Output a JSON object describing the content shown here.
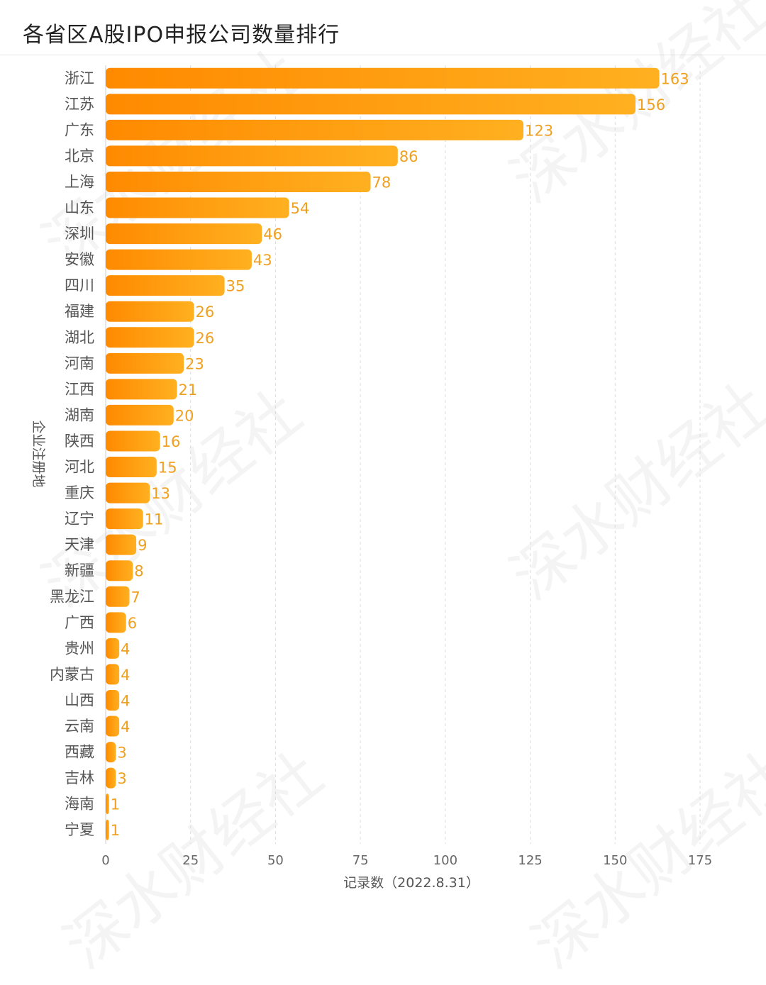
{
  "title": "各省区A股IPO申报公司数量排行",
  "watermark": "深水财经社",
  "colors": {
    "bar_start": "#ff8a00",
    "bar_end": "#ffb020",
    "value_label": "#f0a020",
    "grid": "#dddddd"
  },
  "chart_data": {
    "type": "bar",
    "orientation": "horizontal",
    "title": "各省区A股IPO申报公司数量排行",
    "xlabel": "记录数（2022.8.31）",
    "ylabel": "企业注册地",
    "xlim": [
      0,
      175
    ],
    "xticks": [
      0,
      25,
      50,
      75,
      100,
      125,
      150,
      175
    ],
    "grid": "vertical dashed",
    "categories": [
      "浙江",
      "江苏",
      "广东",
      "北京",
      "上海",
      "山东",
      "深圳",
      "安徽",
      "四川",
      "福建",
      "湖北",
      "河南",
      "江西",
      "湖南",
      "陕西",
      "河北",
      "重庆",
      "辽宁",
      "天津",
      "新疆",
      "黑龙江",
      "广西",
      "贵州",
      "内蒙古",
      "山西",
      "云南",
      "西藏",
      "吉林",
      "海南",
      "宁夏"
    ],
    "values": [
      163,
      156,
      123,
      86,
      78,
      54,
      46,
      43,
      35,
      26,
      26,
      23,
      21,
      20,
      16,
      15,
      13,
      11,
      9,
      8,
      7,
      6,
      4,
      4,
      4,
      4,
      3,
      3,
      1,
      1
    ]
  }
}
